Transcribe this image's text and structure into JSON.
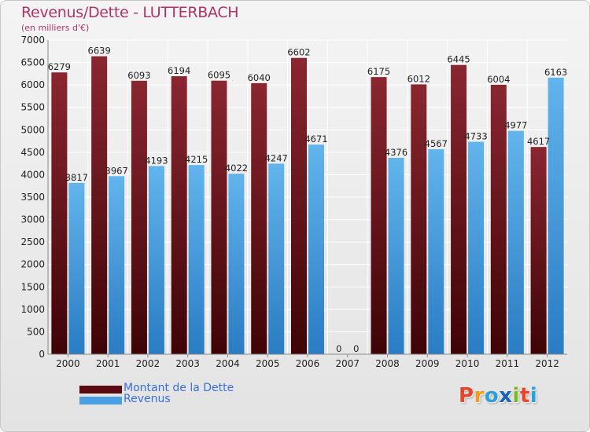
{
  "title": "Revenus/Dette - LUTTERBACH",
  "subtitle": "(en milliers d'€)",
  "logo_text": "Proxiti",
  "logo_colors": [
    "#e8432b",
    "#f29a1e",
    "#2e9fd8",
    "#1c63b8",
    "#7ab829",
    "#e8432b",
    "#2e9fd8"
  ],
  "colors": {
    "series_dette": "#7a1a22",
    "series_dette_dark": "#4a0608",
    "series_revenus": "#5aaee8",
    "series_revenus_dark": "#2a78c0",
    "title": "#b0326a",
    "legend_text": "#3a6fd8"
  },
  "legend": [
    {
      "label": "Montant de la Dette",
      "color": "#5a0a10"
    },
    {
      "label": "Revenus",
      "color": "#4aa0e4"
    }
  ],
  "chart_data": {
    "type": "bar",
    "title": "Revenus/Dette - LUTTERBACH",
    "subtitle": "(en milliers d'€)",
    "categories": [
      "2000",
      "2001",
      "2002",
      "2003",
      "2004",
      "2005",
      "2006",
      "2007",
      "2008",
      "2009",
      "2010",
      "2011",
      "2012"
    ],
    "series": [
      {
        "name": "Montant de la Dette",
        "values": [
          6279,
          6639,
          6093,
          6194,
          6095,
          6040,
          6602,
          0,
          6175,
          6012,
          6445,
          6004,
          4617
        ]
      },
      {
        "name": "Revenus",
        "values": [
          3817,
          3967,
          4193,
          4215,
          4022,
          4247,
          4671,
          0,
          4376,
          4567,
          4733,
          4977,
          6163
        ]
      }
    ],
    "ylim": [
      0,
      7000
    ],
    "yticks": [
      0,
      500,
      1000,
      1500,
      2000,
      2500,
      3000,
      3500,
      4000,
      4500,
      5000,
      5500,
      6000,
      6500,
      7000
    ],
    "grid": true,
    "legend_position": "bottom-left",
    "data_labels": true
  }
}
